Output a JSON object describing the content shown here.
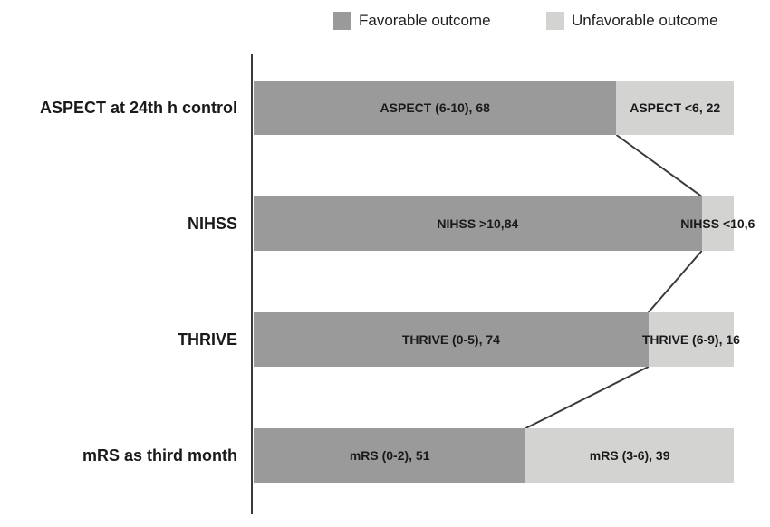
{
  "legend": {
    "favorable_label": "Favorable outcome",
    "unfavorable_label": "Unfavorable outcome"
  },
  "colors": {
    "favorable": "#9a9a9a",
    "unfavorable": "#d3d3d2",
    "axis": "#3a3a3a",
    "connector": "#3a3a3a",
    "text": "#1a1a1a",
    "background": "#ffffff"
  },
  "chart_data": {
    "type": "bar",
    "orientation": "horizontal",
    "stacked": true,
    "title": "",
    "xlabel": "",
    "ylabel": "",
    "x_total": 90,
    "grid": false,
    "legend_position": "top",
    "connector_lines": true,
    "categories": [
      "ASPECT at 24th h control",
      "NIHSS",
      "THRIVE",
      "mRS as third month"
    ],
    "series": [
      {
        "name": "Favorable outcome",
        "values": [
          68,
          84,
          74,
          51
        ],
        "bar_labels": [
          "ASPECT (6-10), 68",
          "NIHSS >10,84",
          "THRIVE (0-5), 74",
          "mRS (0-2), 51"
        ]
      },
      {
        "name": "Unfavorable outcome",
        "values": [
          22,
          6,
          16,
          39
        ],
        "bar_labels": [
          "ASPECT <6, 22",
          "NIHSS <10,6",
          "THRIVE (6-9), 16",
          "mRS (3-6), 39"
        ]
      }
    ]
  }
}
